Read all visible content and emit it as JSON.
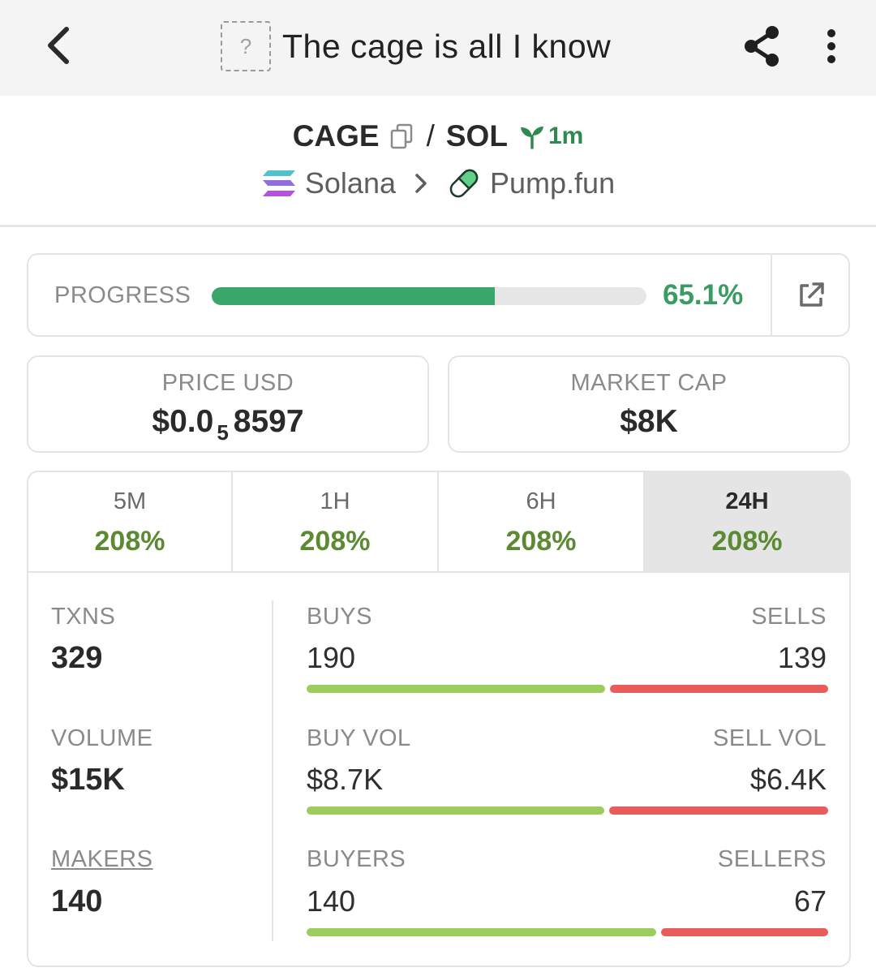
{
  "header": {
    "title": "The cage is all I know",
    "token_image_placeholder": "?"
  },
  "pair": {
    "base": "CAGE",
    "separator": "/",
    "quote": "SOL",
    "age": "1m",
    "chain": "Solana",
    "dex": "Pump.fun"
  },
  "progress": {
    "label": "PROGRESS",
    "percent": 65.1,
    "value_text": "65.1%"
  },
  "price": {
    "label": "PRICE USD",
    "prefix": "$0.0",
    "zeros": "5",
    "digits": "8597"
  },
  "market_cap": {
    "label": "MARKET CAP",
    "value": "$8K"
  },
  "timeframes": [
    {
      "label": "5M",
      "change": "208%",
      "active": false
    },
    {
      "label": "1H",
      "change": "208%",
      "active": false
    },
    {
      "label": "6H",
      "change": "208%",
      "active": false
    },
    {
      "label": "24H",
      "change": "208%",
      "active": true
    }
  ],
  "stats": {
    "txns_label": "TXNS",
    "txns": "329",
    "volume_label": "VOLUME",
    "volume": "$15K",
    "makers_label": "MAKERS",
    "makers": "140",
    "buys_label": "BUYS",
    "buys": "190",
    "sells_label": "SELLS",
    "sells": "139",
    "buy_vol_label": "BUY VOL",
    "buy_vol": "$8.7K",
    "sell_vol_label": "SELL VOL",
    "sell_vol": "$6.4K",
    "buyers_label": "BUYERS",
    "buyers": "140",
    "sellers_label": "SELLERS",
    "sellers": "67"
  },
  "ratios": {
    "txns_buy_fraction": 0.577,
    "volume_buy_fraction": 0.576,
    "makers_buy_fraction": 0.676
  },
  "colors": {
    "progress": "#3aa66a",
    "positive": "#5b8a32",
    "buy_bar": "#9ccc5c",
    "sell_bar": "#e85c5c"
  }
}
